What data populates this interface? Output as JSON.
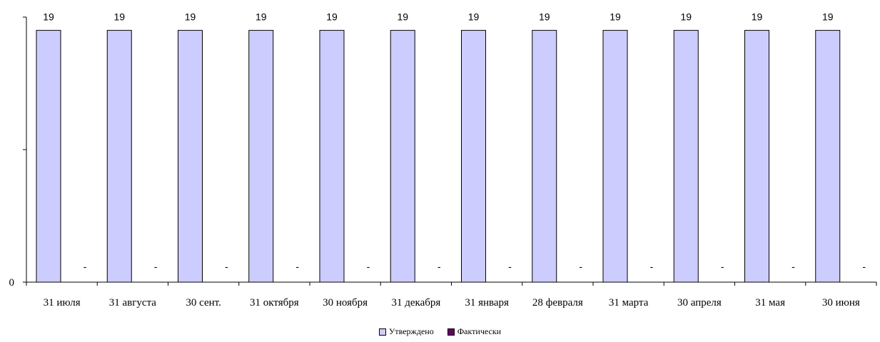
{
  "chart_data": {
    "type": "bar",
    "categories": [
      "31 июля",
      "31 августа",
      "30 сент.",
      "31 октября",
      "30 ноября",
      "31 декабря",
      "31 января",
      "28 февраля",
      "31 марта",
      "30 апреля",
      "31  мая",
      "30 июня"
    ],
    "series": [
      {
        "name": "Утверждено",
        "values": [
          19,
          19,
          19,
          19,
          19,
          19,
          19,
          19,
          19,
          19,
          19,
          19
        ],
        "labels": [
          "19",
          "19",
          "19",
          "19",
          "19",
          "19",
          "19",
          "19",
          "19",
          "19",
          "19",
          "19"
        ],
        "color": "#ccccff"
      },
      {
        "name": "Фактически",
        "values": [
          0,
          0,
          0,
          0,
          0,
          0,
          0,
          0,
          0,
          0,
          0,
          0
        ],
        "labels": [
          "-",
          "-",
          "-",
          "-",
          "-",
          "-",
          "-",
          "-",
          "-",
          "-",
          "-",
          "-"
        ],
        "color": "#660066"
      }
    ],
    "y_tick_labels": [
      "0"
    ],
    "ylim": [
      0,
      20
    ],
    "legend_position": "bottom",
    "grid": false
  }
}
